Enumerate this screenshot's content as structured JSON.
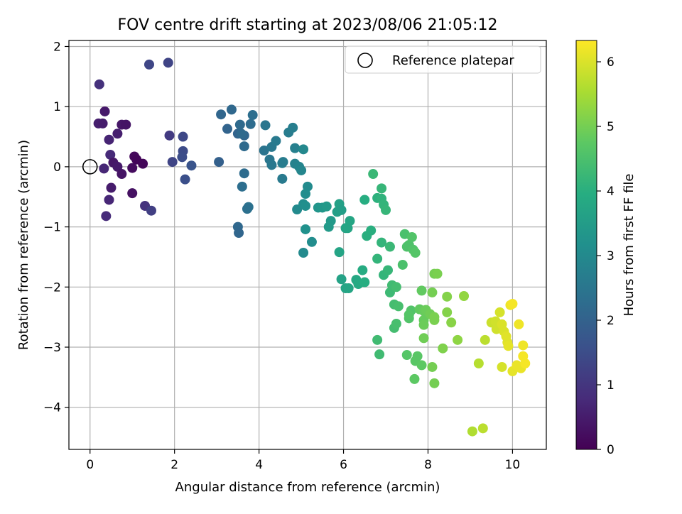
{
  "chart_data": {
    "type": "scatter",
    "title": "FOV centre drift starting at 2023/08/06 21:05:12",
    "xlabel": "Angular distance from reference (arcmin)",
    "ylabel": "Rotation from reference (arcmin)",
    "xlim": [
      -0.5,
      10.8
    ],
    "ylim": [
      -4.7,
      2.1
    ],
    "x_ticks": [
      0,
      2,
      4,
      6,
      8,
      10
    ],
    "y_ticks": [
      -4,
      -3,
      -2,
      -1,
      0,
      1,
      2
    ],
    "x_tick_labels": [
      "0",
      "2",
      "4",
      "6",
      "8",
      "10"
    ],
    "y_tick_labels": [
      "−4",
      "−3",
      "−2",
      "−1",
      "0",
      "1",
      "2"
    ],
    "grid": true,
    "legend": {
      "position": "top-right",
      "entries": [
        "Reference platepar"
      ]
    },
    "reference_point": {
      "x": 0,
      "y": 0,
      "label": "Reference platepar"
    },
    "colorbar": {
      "label": "Hours from first FF file",
      "colormap": "viridis",
      "range": [
        0,
        6.33
      ],
      "ticks": [
        0,
        1,
        2,
        3,
        4,
        5,
        6
      ],
      "tick_labels": [
        "0",
        "1",
        "2",
        "3",
        "4",
        "5",
        "6"
      ]
    },
    "points": [
      {
        "x": 0.22,
        "y": 1.37,
        "t": 0.9
      },
      {
        "x": 0.2,
        "y": 0.72,
        "t": 0.55
      },
      {
        "x": 0.3,
        "y": 0.72,
        "t": 0.5
      },
      {
        "x": 0.35,
        "y": 0.92,
        "t": 0.45
      },
      {
        "x": 0.33,
        "y": -0.03,
        "t": 0.7
      },
      {
        "x": 0.45,
        "y": 0.45,
        "t": 0.65
      },
      {
        "x": 0.48,
        "y": 0.2,
        "t": 0.75
      },
      {
        "x": 0.55,
        "y": 0.07,
        "t": 0.4
      },
      {
        "x": 0.65,
        "y": 0.55,
        "t": 0.55
      },
      {
        "x": 0.75,
        "y": 0.7,
        "t": 0.4
      },
      {
        "x": 0.85,
        "y": 0.7,
        "t": 0.35
      },
      {
        "x": 0.65,
        "y": 0.0,
        "t": 0.45
      },
      {
        "x": 0.75,
        "y": -0.12,
        "t": 0.35
      },
      {
        "x": 1.05,
        "y": 0.17,
        "t": 0.15
      },
      {
        "x": 1.1,
        "y": 0.12,
        "t": 0.1
      },
      {
        "x": 1.0,
        "y": -0.02,
        "t": 0.2
      },
      {
        "x": 1.25,
        "y": 0.05,
        "t": 0.1
      },
      {
        "x": 0.5,
        "y": -0.35,
        "t": 0.5
      },
      {
        "x": 0.45,
        "y": -0.55,
        "t": 0.7
      },
      {
        "x": 0.38,
        "y": -0.82,
        "t": 0.8
      },
      {
        "x": 1.0,
        "y": -0.44,
        "t": 0.3
      },
      {
        "x": 1.3,
        "y": -0.65,
        "t": 0.95
      },
      {
        "x": 1.45,
        "y": -0.73,
        "t": 1.2
      },
      {
        "x": 1.4,
        "y": 1.7,
        "t": 1.35
      },
      {
        "x": 1.85,
        "y": 1.73,
        "t": 1.3
      },
      {
        "x": 1.88,
        "y": 0.52,
        "t": 1.1
      },
      {
        "x": 1.95,
        "y": 0.08,
        "t": 1.3
      },
      {
        "x": 2.2,
        "y": 0.5,
        "t": 1.4
      },
      {
        "x": 2.2,
        "y": 0.26,
        "t": 1.45
      },
      {
        "x": 2.18,
        "y": 0.16,
        "t": 1.5
      },
      {
        "x": 2.25,
        "y": -0.21,
        "t": 1.55
      },
      {
        "x": 2.4,
        "y": 0.02,
        "t": 1.65
      },
      {
        "x": 3.05,
        "y": 0.08,
        "t": 1.95
      },
      {
        "x": 3.1,
        "y": 0.87,
        "t": 2.1
      },
      {
        "x": 3.25,
        "y": 0.63,
        "t": 2.05
      },
      {
        "x": 3.35,
        "y": 0.95,
        "t": 2.15
      },
      {
        "x": 3.5,
        "y": 0.55,
        "t": 2.05
      },
      {
        "x": 3.55,
        "y": 0.7,
        "t": 2.2
      },
      {
        "x": 3.65,
        "y": 0.52,
        "t": 2.1
      },
      {
        "x": 3.58,
        "y": 0.55,
        "t": 2.2
      },
      {
        "x": 3.8,
        "y": 0.71,
        "t": 2.25
      },
      {
        "x": 3.85,
        "y": 0.86,
        "t": 2.3
      },
      {
        "x": 3.65,
        "y": 0.34,
        "t": 2.2
      },
      {
        "x": 3.65,
        "y": -0.11,
        "t": 2.25
      },
      {
        "x": 3.6,
        "y": -0.33,
        "t": 2.3
      },
      {
        "x": 3.5,
        "y": -1.0,
        "t": 2.15
      },
      {
        "x": 3.52,
        "y": -1.1,
        "t": 2.1
      },
      {
        "x": 3.75,
        "y": -0.67,
        "t": 2.4
      },
      {
        "x": 3.72,
        "y": -0.7,
        "t": 2.35
      },
      {
        "x": 4.15,
        "y": 0.69,
        "t": 2.5
      },
      {
        "x": 4.12,
        "y": 0.27,
        "t": 2.45
      },
      {
        "x": 4.25,
        "y": 0.12,
        "t": 2.5
      },
      {
        "x": 4.3,
        "y": 0.33,
        "t": 2.55
      },
      {
        "x": 4.4,
        "y": 0.43,
        "t": 2.6
      },
      {
        "x": 4.3,
        "y": 0.03,
        "t": 2.55
      },
      {
        "x": 4.55,
        "y": -0.2,
        "t": 2.6
      },
      {
        "x": 4.55,
        "y": 0.06,
        "t": 2.7
      },
      {
        "x": 4.57,
        "y": 0.08,
        "t": 2.65
      },
      {
        "x": 4.7,
        "y": 0.57,
        "t": 2.65
      },
      {
        "x": 4.8,
        "y": 0.65,
        "t": 2.7
      },
      {
        "x": 4.85,
        "y": 0.31,
        "t": 2.75
      },
      {
        "x": 4.85,
        "y": 0.05,
        "t": 2.8
      },
      {
        "x": 4.95,
        "y": 0.0,
        "t": 2.85
      },
      {
        "x": 5.0,
        "y": -0.06,
        "t": 2.9
      },
      {
        "x": 5.05,
        "y": 0.29,
        "t": 2.95
      },
      {
        "x": 5.15,
        "y": -0.33,
        "t": 3.05
      },
      {
        "x": 5.1,
        "y": -0.45,
        "t": 3.1
      },
      {
        "x": 4.9,
        "y": -0.71,
        "t": 3.0
      },
      {
        "x": 5.05,
        "y": -0.62,
        "t": 3.1
      },
      {
        "x": 5.1,
        "y": -0.65,
        "t": 3.15
      },
      {
        "x": 5.1,
        "y": -1.04,
        "t": 3.2
      },
      {
        "x": 5.05,
        "y": -1.43,
        "t": 3.0
      },
      {
        "x": 5.25,
        "y": -1.25,
        "t": 3.1
      },
      {
        "x": 5.4,
        "y": -0.68,
        "t": 3.3
      },
      {
        "x": 5.5,
        "y": -0.68,
        "t": 3.35
      },
      {
        "x": 5.6,
        "y": -0.66,
        "t": 3.4
      },
      {
        "x": 5.7,
        "y": -0.9,
        "t": 3.4
      },
      {
        "x": 5.65,
        "y": -1.0,
        "t": 3.45
      },
      {
        "x": 5.85,
        "y": -0.75,
        "t": 3.55
      },
      {
        "x": 5.9,
        "y": -0.62,
        "t": 3.6
      },
      {
        "x": 5.95,
        "y": -0.72,
        "t": 3.55
      },
      {
        "x": 5.9,
        "y": -1.42,
        "t": 3.7
      },
      {
        "x": 5.95,
        "y": -1.87,
        "t": 3.65
      },
      {
        "x": 6.05,
        "y": -1.02,
        "t": 3.7
      },
      {
        "x": 6.1,
        "y": -1.02,
        "t": 3.75
      },
      {
        "x": 6.15,
        "y": -0.9,
        "t": 3.75
      },
      {
        "x": 6.05,
        "y": -2.02,
        "t": 3.7
      },
      {
        "x": 6.12,
        "y": -2.02,
        "t": 3.75
      },
      {
        "x": 6.3,
        "y": -1.88,
        "t": 3.8
      },
      {
        "x": 6.35,
        "y": -1.95,
        "t": 3.85
      },
      {
        "x": 6.45,
        "y": -1.72,
        "t": 3.9
      },
      {
        "x": 6.5,
        "y": -1.92,
        "t": 3.95
      },
      {
        "x": 6.5,
        "y": -0.55,
        "t": 3.95
      },
      {
        "x": 6.55,
        "y": -1.15,
        "t": 4.0
      },
      {
        "x": 6.65,
        "y": -1.06,
        "t": 4.0
      },
      {
        "x": 6.7,
        "y": -0.12,
        "t": 4.25
      },
      {
        "x": 6.8,
        "y": -0.52,
        "t": 4.05
      },
      {
        "x": 6.9,
        "y": -0.53,
        "t": 4.1
      },
      {
        "x": 6.9,
        "y": -0.36,
        "t": 4.2
      },
      {
        "x": 6.95,
        "y": -0.63,
        "t": 4.15
      },
      {
        "x": 7.0,
        "y": -0.72,
        "t": 4.2
      },
      {
        "x": 6.8,
        "y": -1.53,
        "t": 4.15
      },
      {
        "x": 6.9,
        "y": -1.26,
        "t": 4.15
      },
      {
        "x": 6.95,
        "y": -1.8,
        "t": 4.15
      },
      {
        "x": 7.05,
        "y": -1.72,
        "t": 4.2
      },
      {
        "x": 7.1,
        "y": -1.33,
        "t": 4.25
      },
      {
        "x": 7.1,
        "y": -2.09,
        "t": 4.3
      },
      {
        "x": 7.15,
        "y": -1.97,
        "t": 4.35
      },
      {
        "x": 7.25,
        "y": -2.0,
        "t": 4.4
      },
      {
        "x": 7.2,
        "y": -2.29,
        "t": 4.4
      },
      {
        "x": 7.3,
        "y": -2.32,
        "t": 4.45
      },
      {
        "x": 7.2,
        "y": -2.68,
        "t": 4.4
      },
      {
        "x": 7.25,
        "y": -2.61,
        "t": 4.45
      },
      {
        "x": 6.8,
        "y": -2.88,
        "t": 4.35
      },
      {
        "x": 6.85,
        "y": -3.12,
        "t": 4.35
      },
      {
        "x": 7.4,
        "y": -1.63,
        "t": 4.5
      },
      {
        "x": 7.45,
        "y": -1.12,
        "t": 4.5
      },
      {
        "x": 7.5,
        "y": -1.33,
        "t": 4.55
      },
      {
        "x": 7.55,
        "y": -1.3,
        "t": 4.55
      },
      {
        "x": 7.62,
        "y": -1.17,
        "t": 4.6
      },
      {
        "x": 7.65,
        "y": -1.38,
        "t": 4.6
      },
      {
        "x": 7.7,
        "y": -1.43,
        "t": 4.65
      },
      {
        "x": 7.55,
        "y": -2.52,
        "t": 4.6
      },
      {
        "x": 7.6,
        "y": -2.39,
        "t": 4.6
      },
      {
        "x": 7.55,
        "y": -2.46,
        "t": 4.65
      },
      {
        "x": 7.5,
        "y": -3.13,
        "t": 4.65
      },
      {
        "x": 7.7,
        "y": -3.23,
        "t": 4.7
      },
      {
        "x": 7.75,
        "y": -3.15,
        "t": 4.7
      },
      {
        "x": 7.68,
        "y": -3.53,
        "t": 4.75
      },
      {
        "x": 7.85,
        "y": -3.3,
        "t": 4.75
      },
      {
        "x": 7.85,
        "y": -2.06,
        "t": 4.8
      },
      {
        "x": 7.8,
        "y": -2.37,
        "t": 4.8
      },
      {
        "x": 7.9,
        "y": -2.4,
        "t": 4.85
      },
      {
        "x": 7.9,
        "y": -2.55,
        "t": 4.85
      },
      {
        "x": 7.95,
        "y": -2.38,
        "t": 4.9
      },
      {
        "x": 7.9,
        "y": -2.63,
        "t": 4.9
      },
      {
        "x": 7.9,
        "y": -2.85,
        "t": 4.95
      },
      {
        "x": 8.05,
        "y": -2.45,
        "t": 4.95
      },
      {
        "x": 8.1,
        "y": -2.09,
        "t": 5.0
      },
      {
        "x": 8.15,
        "y": -1.78,
        "t": 5.0
      },
      {
        "x": 8.22,
        "y": -1.78,
        "t": 5.05
      },
      {
        "x": 8.15,
        "y": -2.55,
        "t": 5.05
      },
      {
        "x": 8.15,
        "y": -2.5,
        "t": 5.05
      },
      {
        "x": 8.1,
        "y": -3.33,
        "t": 5.0
      },
      {
        "x": 8.15,
        "y": -3.6,
        "t": 5.0
      },
      {
        "x": 8.35,
        "y": -3.02,
        "t": 5.1
      },
      {
        "x": 8.45,
        "y": -2.16,
        "t": 5.15
      },
      {
        "x": 8.45,
        "y": -2.42,
        "t": 5.15
      },
      {
        "x": 8.55,
        "y": -2.59,
        "t": 5.2
      },
      {
        "x": 8.7,
        "y": -2.88,
        "t": 5.25
      },
      {
        "x": 8.85,
        "y": -2.15,
        "t": 5.3
      },
      {
        "x": 9.05,
        "y": -4.4,
        "t": 5.6
      },
      {
        "x": 9.2,
        "y": -3.27,
        "t": 5.65
      },
      {
        "x": 9.3,
        "y": -4.35,
        "t": 5.7
      },
      {
        "x": 9.35,
        "y": -2.88,
        "t": 5.7
      },
      {
        "x": 9.5,
        "y": -2.59,
        "t": 5.85
      },
      {
        "x": 9.6,
        "y": -2.57,
        "t": 5.9
      },
      {
        "x": 9.62,
        "y": -2.7,
        "t": 5.9
      },
      {
        "x": 9.7,
        "y": -2.42,
        "t": 5.95
      },
      {
        "x": 9.75,
        "y": -2.62,
        "t": 6.0
      },
      {
        "x": 9.75,
        "y": -3.33,
        "t": 5.95
      },
      {
        "x": 9.8,
        "y": -2.74,
        "t": 6.0
      },
      {
        "x": 9.85,
        "y": -2.82,
        "t": 6.05
      },
      {
        "x": 9.88,
        "y": -2.92,
        "t": 6.05
      },
      {
        "x": 9.9,
        "y": -2.98,
        "t": 6.1
      },
      {
        "x": 9.95,
        "y": -2.3,
        "t": 6.2
      },
      {
        "x": 10.0,
        "y": -2.28,
        "t": 6.25
      },
      {
        "x": 10.0,
        "y": -3.4,
        "t": 6.1
      },
      {
        "x": 10.1,
        "y": -3.3,
        "t": 6.15
      },
      {
        "x": 10.2,
        "y": -3.35,
        "t": 6.15
      },
      {
        "x": 10.15,
        "y": -2.62,
        "t": 6.2
      },
      {
        "x": 10.25,
        "y": -2.97,
        "t": 6.2
      },
      {
        "x": 10.25,
        "y": -3.15,
        "t": 6.25
      },
      {
        "x": 10.3,
        "y": -3.27,
        "t": 6.25
      }
    ]
  }
}
